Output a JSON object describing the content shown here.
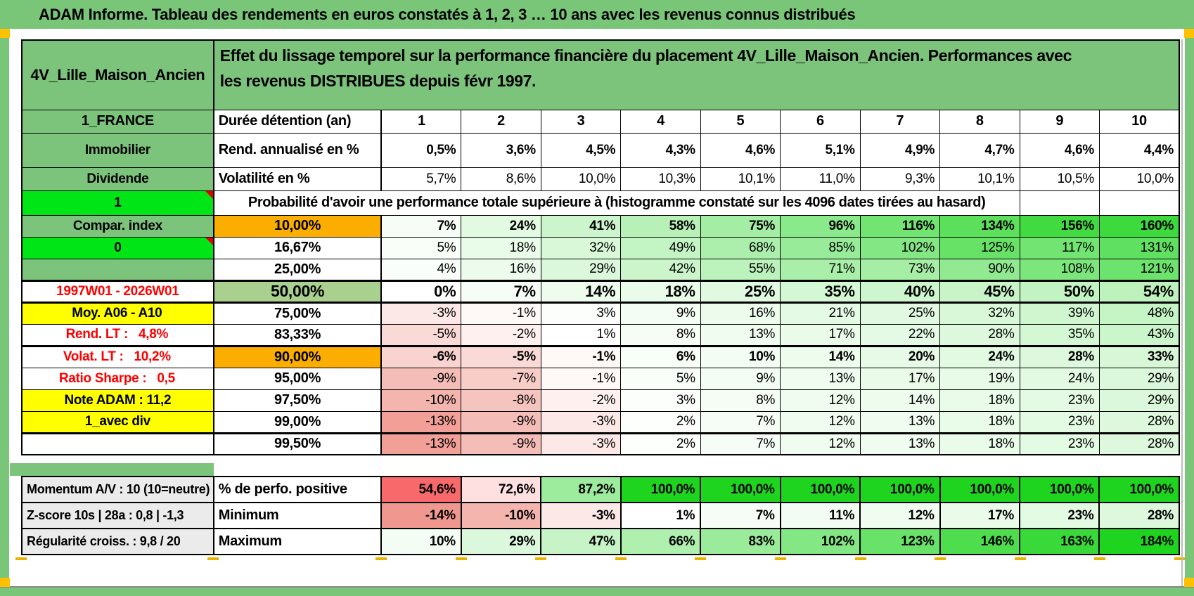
{
  "title": "ADAM Informe. Tableau des rendements en euros constatés à 1, 2, 3 … 10 ans avec les revenus connus distribués",
  "colors": {
    "frame-green": "#79C679",
    "cell-green": "#7CC47C",
    "bright-green": "#00E516",
    "sage-green": "#A9D08E",
    "orange": "#FBAE00",
    "yellow": "#FFFF00",
    "gray-label": "#EBEBEB",
    "rend-bg": "#CBE3BB",
    "red-text": "#FF0000",
    "marker-yellow": "#FFC000"
  },
  "scales": {
    "main": {
      "min": -14,
      "mid": 0,
      "max": 184,
      "red": "#F0988F",
      "green": "#1FD41F"
    },
    "perfo": {
      "min": 54.6,
      "mid": 77.3,
      "max": 100,
      "red": "#F8696B",
      "green": "#1FD41F"
    }
  },
  "header": {
    "product": "4V_Lille_Maison_Ancien",
    "description": "Effet du lissage temporel sur la performance financière du placement 4V_Lille_Maison_Ancien. Performances avec les revenus DISTRIBUES depuis févr 1997."
  },
  "main_rows": [
    {
      "kind": "cols",
      "left": {
        "text": "1_FRANCE",
        "bg": "green"
      },
      "label": "Durée détention (an)",
      "label_align": "left",
      "values": [
        "1",
        "2",
        "3",
        "4",
        "5",
        "6",
        "7",
        "8",
        "9",
        "10"
      ]
    },
    {
      "kind": "rend",
      "bold": true,
      "left": {
        "text": "Immobilier",
        "bg": "green"
      },
      "label": "Rend. annualisé en %",
      "label_align": "left",
      "values": [
        "0,5%",
        "3,6%",
        "4,5%",
        "4,3%",
        "4,6%",
        "5,1%",
        "4,9%",
        "4,7%",
        "4,6%",
        "4,4%"
      ]
    },
    {
      "kind": "volat",
      "left": {
        "text": "Dividende",
        "bg": "green"
      },
      "label": "Volatilité en %",
      "label_align": "left",
      "values": [
        "5,7%",
        "8,6%",
        "10,0%",
        "10,3%",
        "10,1%",
        "11,0%",
        "9,3%",
        "10,1%",
        "10,5%",
        "10,0%"
      ]
    },
    {
      "kind": "probhdr",
      "left": {
        "text": "1",
        "bg": "bright",
        "tri": true
      },
      "text": "Probabilité d'avoir une performance totale supérieure à (histogramme constaté sur les 4096 dates tirées au hasard)"
    },
    {
      "kind": "pct",
      "bold": true,
      "left": {
        "text": "Compar. index",
        "bg": "green"
      },
      "label": "10,00%",
      "labelBg": "orange",
      "values": [
        "7%",
        "24%",
        "41%",
        "58%",
        "75%",
        "96%",
        "116%",
        "134%",
        "156%",
        "160%"
      ],
      "nums": [
        7,
        24,
        41,
        58,
        75,
        96,
        116,
        134,
        156,
        160
      ]
    },
    {
      "kind": "pct",
      "left": {
        "text": "0",
        "bg": "bright",
        "tri": true
      },
      "label": "16,67%",
      "values": [
        "5%",
        "18%",
        "32%",
        "49%",
        "68%",
        "85%",
        "102%",
        "125%",
        "117%",
        "131%"
      ],
      "nums": [
        5,
        18,
        32,
        49,
        68,
        85,
        102,
        125,
        117,
        131
      ]
    },
    {
      "kind": "pct",
      "left": {
        "text": "",
        "bg": "green"
      },
      "label": "25,00%",
      "values": [
        "4%",
        "16%",
        "29%",
        "42%",
        "55%",
        "71%",
        "73%",
        "90%",
        "108%",
        "121%"
      ],
      "nums": [
        4,
        16,
        29,
        42,
        55,
        71,
        73,
        90,
        108,
        121
      ]
    },
    {
      "kind": "pct",
      "bold": true,
      "big": true,
      "sep": "both",
      "left": {
        "text": "1997W01 - 2026W01",
        "bg": "white",
        "color": "red"
      },
      "label": "50,00%",
      "labelBg": "sage",
      "values": [
        "0%",
        "7%",
        "14%",
        "18%",
        "25%",
        "35%",
        "40%",
        "45%",
        "50%",
        "54%"
      ],
      "nums": [
        0,
        7,
        14,
        18,
        25,
        35,
        40,
        45,
        50,
        54
      ]
    },
    {
      "kind": "pct",
      "left": {
        "text": "Moy. A06 - A10",
        "bg": "yellow",
        "align": "right"
      },
      "label": "75,00%",
      "values": [
        "-3%",
        "-1%",
        "3%",
        "9%",
        "16%",
        "21%",
        "25%",
        "32%",
        "39%",
        "48%"
      ],
      "nums": [
        -3,
        -1,
        3,
        9,
        16,
        21,
        25,
        32,
        39,
        48
      ]
    },
    {
      "kind": "pct",
      "left": {
        "text": "Rend. LT :   4,8%",
        "bg": "white",
        "color": "red",
        "align": "right"
      },
      "label": "83,33%",
      "values": [
        "-5%",
        "-2%",
        "1%",
        "8%",
        "13%",
        "17%",
        "22%",
        "28%",
        "35%",
        "43%"
      ],
      "nums": [
        -5,
        -2,
        1,
        8,
        13,
        17,
        22,
        28,
        35,
        43
      ]
    },
    {
      "kind": "pct",
      "bold": true,
      "sep": "top",
      "left": {
        "text": "Volat. LT :   10,2%",
        "bg": "white",
        "color": "red",
        "align": "right"
      },
      "label": "90,00%",
      "labelBg": "orange",
      "values": [
        "-6%",
        "-5%",
        "-1%",
        "6%",
        "10%",
        "14%",
        "20%",
        "24%",
        "28%",
        "33%"
      ],
      "nums": [
        -6,
        -5,
        -1,
        6,
        10,
        14,
        20,
        24,
        28,
        33
      ]
    },
    {
      "kind": "pct",
      "left": {
        "text": "Ratio Sharpe :   0,5",
        "bg": "white",
        "color": "red",
        "align": "right"
      },
      "label": "95,00%",
      "values": [
        "-9%",
        "-7%",
        "-1%",
        "5%",
        "9%",
        "13%",
        "17%",
        "19%",
        "24%",
        "29%"
      ],
      "nums": [
        -9,
        -7,
        -1,
        5,
        9,
        13,
        17,
        19,
        24,
        29
      ]
    },
    {
      "kind": "pct",
      "left": {
        "text": "Note ADAM : 11,2",
        "bg": "yellow",
        "align": "left"
      },
      "label": "97,50%",
      "values": [
        "-10%",
        "-8%",
        "-2%",
        "3%",
        "8%",
        "12%",
        "14%",
        "18%",
        "23%",
        "29%"
      ],
      "nums": [
        -10,
        -8,
        -2,
        3,
        8,
        12,
        14,
        18,
        23,
        29
      ]
    },
    {
      "kind": "pct",
      "left": {
        "text": "1_avec div",
        "bg": "yellow",
        "align": "left"
      },
      "label": "99,00%",
      "values": [
        "-13%",
        "-9%",
        "-3%",
        "2%",
        "7%",
        "12%",
        "13%",
        "18%",
        "23%",
        "28%"
      ],
      "nums": [
        -13,
        -9,
        -3,
        2,
        7,
        12,
        13,
        18,
        23,
        28
      ]
    },
    {
      "kind": "pct",
      "sep": "top",
      "left": {
        "text": "",
        "bg": "white"
      },
      "label": "99,50%",
      "values": [
        "-13%",
        "-9%",
        "-3%",
        "2%",
        "7%",
        "12%",
        "13%",
        "18%",
        "23%",
        "28%"
      ],
      "nums": [
        -13,
        -9,
        -3,
        2,
        7,
        12,
        13,
        18,
        23,
        28
      ]
    }
  ],
  "bottom_rows": [
    {
      "left": "Momentum A/V : 10 (10=neutre)",
      "label": "% de perfo. positive",
      "scale": "perfo",
      "values": [
        "54,6%",
        "72,6%",
        "87,2%",
        "100,0%",
        "100,0%",
        "100,0%",
        "100,0%",
        "100,0%",
        "100,0%",
        "100,0%"
      ],
      "nums": [
        54.6,
        72.6,
        87.2,
        100,
        100,
        100,
        100,
        100,
        100,
        100
      ]
    },
    {
      "left": "Z-score 10s | 28a : 0,8 | -1,3",
      "label": "Minimum",
      "scale": "main",
      "values": [
        "-14%",
        "-10%",
        "-3%",
        "1%",
        "7%",
        "11%",
        "12%",
        "17%",
        "23%",
        "28%"
      ],
      "nums": [
        -14,
        -10,
        -3,
        1,
        7,
        11,
        12,
        17,
        23,
        28
      ]
    },
    {
      "left": "Régularité croiss. : 9,8 / 20",
      "label": "Maximum",
      "scale": "main",
      "values": [
        "10%",
        "29%",
        "47%",
        "66%",
        "83%",
        "102%",
        "123%",
        "146%",
        "163%",
        "184%"
      ],
      "nums": [
        10,
        29,
        47,
        66,
        83,
        102,
        123,
        146,
        163,
        184
      ]
    }
  ]
}
